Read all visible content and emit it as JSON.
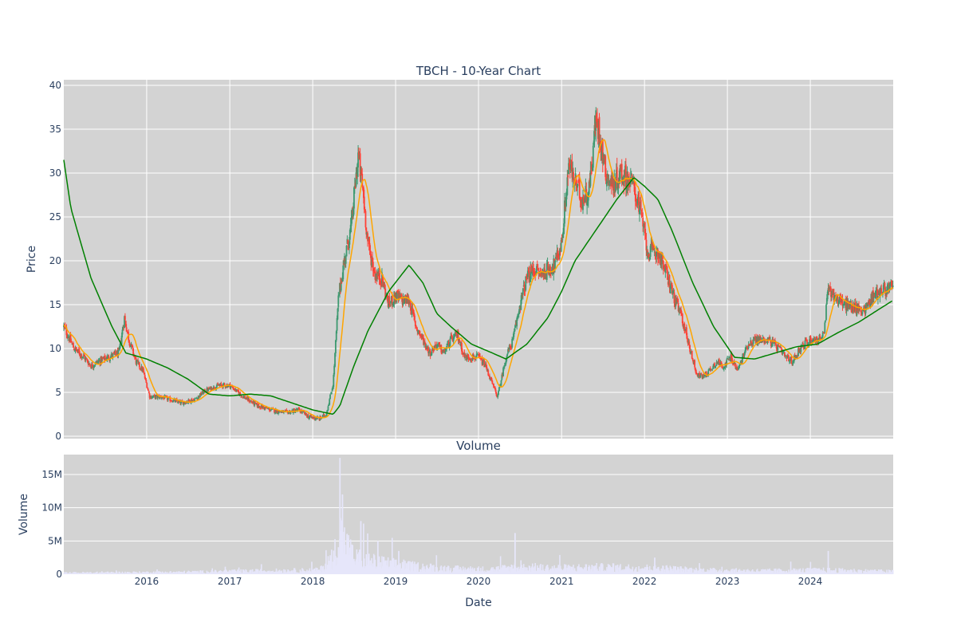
{
  "colors": {
    "plot_bg": "#d3d3d3",
    "grid": "#ffffff",
    "up": "#3d9970",
    "down": "#ff4136",
    "short_ma": "#ffa500",
    "long_ma": "#008000",
    "volume": "#e6e6fa"
  },
  "chart_data": [
    {
      "type": "candlestick",
      "title": "TBCH - 10-Year Chart",
      "ylabel": "Price",
      "ylim": [
        0,
        40
      ],
      "y_ticks": [
        0,
        5,
        10,
        15,
        20,
        25,
        30,
        35,
        40
      ],
      "x_ticks": [
        "2016",
        "2017",
        "2018",
        "2019",
        "2020",
        "2021",
        "2022",
        "2023",
        "2024"
      ],
      "x_range": [
        "2015-01-01",
        "2024-12-31"
      ],
      "grid": true,
      "price_path": [
        [
          "2015-01-01",
          12.5
        ],
        [
          "2015-02-15",
          10.0
        ],
        [
          "2015-04-01",
          9.0
        ],
        [
          "2015-05-01",
          8.0
        ],
        [
          "2015-06-01",
          8.5
        ],
        [
          "2015-07-15",
          9.0
        ],
        [
          "2015-09-01",
          9.5
        ],
        [
          "2015-09-25",
          13.5
        ],
        [
          "2015-10-15",
          11.0
        ],
        [
          "2015-11-15",
          8.5
        ],
        [
          "2015-12-15",
          7.5
        ],
        [
          "2016-01-15",
          4.5
        ],
        [
          "2016-03-01",
          4.5
        ],
        [
          "2016-06-01",
          3.8
        ],
        [
          "2016-08-01",
          4.2
        ],
        [
          "2016-09-15",
          5.2
        ],
        [
          "2016-11-15",
          5.8
        ],
        [
          "2017-01-01",
          5.8
        ],
        [
          "2017-03-01",
          4.5
        ],
        [
          "2017-05-01",
          3.5
        ],
        [
          "2017-07-01",
          3.0
        ],
        [
          "2017-09-01",
          2.7
        ],
        [
          "2017-11-01",
          3.0
        ],
        [
          "2017-12-15",
          2.2
        ],
        [
          "2018-02-01",
          2.0
        ],
        [
          "2018-03-01",
          2.5
        ],
        [
          "2018-04-01",
          6.0
        ],
        [
          "2018-04-25",
          16.0
        ],
        [
          "2018-05-20",
          20.0
        ],
        [
          "2018-06-20",
          24.0
        ],
        [
          "2018-07-20",
          32.0
        ],
        [
          "2018-08-10",
          28.0
        ],
        [
          "2018-09-01",
          22.0
        ],
        [
          "2018-10-01",
          18.5
        ],
        [
          "2018-11-01",
          18.0
        ],
        [
          "2018-12-01",
          15.0
        ],
        [
          "2019-01-01",
          16.0
        ],
        [
          "2019-02-01",
          15.5
        ],
        [
          "2019-03-01",
          15.5
        ],
        [
          "2019-04-01",
          12.5
        ],
        [
          "2019-05-01",
          11.0
        ],
        [
          "2019-06-01",
          9.5
        ],
        [
          "2019-07-01",
          10.5
        ],
        [
          "2019-08-01",
          9.5
        ],
        [
          "2019-09-01",
          11.0
        ],
        [
          "2019-10-01",
          11.5
        ],
        [
          "2019-11-01",
          9.0
        ],
        [
          "2019-12-01",
          9.0
        ],
        [
          "2020-01-01",
          9.0
        ],
        [
          "2020-02-01",
          8.0
        ],
        [
          "2020-03-01",
          6.0
        ],
        [
          "2020-03-25",
          4.5
        ],
        [
          "2020-05-01",
          9.0
        ],
        [
          "2020-06-01",
          11.0
        ],
        [
          "2020-07-01",
          15.0
        ],
        [
          "2020-08-01",
          18.0
        ],
        [
          "2020-09-01",
          19.0
        ],
        [
          "2020-10-01",
          18.5
        ],
        [
          "2020-11-01",
          19.0
        ],
        [
          "2020-12-01",
          19.5
        ],
        [
          "2021-01-01",
          22.0
        ],
        [
          "2021-02-01",
          31.0
        ],
        [
          "2021-03-01",
          29.0
        ],
        [
          "2021-04-01",
          27.0
        ],
        [
          "2021-05-01",
          28.0
        ],
        [
          "2021-06-01",
          36.0
        ],
        [
          "2021-06-20",
          34.0
        ],
        [
          "2021-07-15",
          30.0
        ],
        [
          "2021-08-15",
          28.5
        ],
        [
          "2021-09-15",
          30.0
        ],
        [
          "2021-10-15",
          29.5
        ],
        [
          "2021-11-15",
          28.5
        ],
        [
          "2021-12-15",
          25.5
        ],
        [
          "2022-01-15",
          21.0
        ],
        [
          "2022-03-01",
          21.0
        ],
        [
          "2022-04-15",
          18.0
        ],
        [
          "2022-05-15",
          15.5
        ],
        [
          "2022-06-15",
          13.5
        ],
        [
          "2022-07-20",
          10.0
        ],
        [
          "2022-08-20",
          7.0
        ],
        [
          "2022-09-15",
          6.8
        ],
        [
          "2022-10-15",
          7.5
        ],
        [
          "2022-11-15",
          8.5
        ],
        [
          "2022-12-15",
          8.0
        ],
        [
          "2023-01-15",
          9.0
        ],
        [
          "2023-02-15",
          7.5
        ],
        [
          "2023-04-01",
          10.5
        ],
        [
          "2023-05-01",
          11.0
        ],
        [
          "2023-07-01",
          11.0
        ],
        [
          "2023-08-15",
          10.0
        ],
        [
          "2023-09-15",
          9.0
        ],
        [
          "2023-10-15",
          8.5
        ],
        [
          "2023-11-15",
          10.0
        ],
        [
          "2024-01-01",
          11.0
        ],
        [
          "2024-02-01",
          11.0
        ],
        [
          "2024-03-01",
          11.5
        ],
        [
          "2024-03-20",
          17.0
        ],
        [
          "2024-04-15",
          16.0
        ],
        [
          "2024-06-01",
          15.0
        ],
        [
          "2024-08-01",
          14.5
        ],
        [
          "2024-09-01",
          14.5
        ],
        [
          "2024-10-01",
          16.0
        ],
        [
          "2024-11-01",
          16.5
        ],
        [
          "2024-12-31",
          17.0
        ]
      ],
      "long_ma": [
        [
          "2015-01-01",
          31.5
        ],
        [
          "2015-02-01",
          26.0
        ],
        [
          "2015-05-01",
          18.0
        ],
        [
          "2015-08-01",
          12.5
        ],
        [
          "2015-10-01",
          9.5
        ],
        [
          "2016-01-01",
          8.8
        ],
        [
          "2016-04-01",
          7.8
        ],
        [
          "2016-07-01",
          6.5
        ],
        [
          "2016-10-01",
          4.8
        ],
        [
          "2017-01-01",
          4.6
        ],
        [
          "2017-04-01",
          4.8
        ],
        [
          "2017-07-01",
          4.6
        ],
        [
          "2017-10-01",
          3.8
        ],
        [
          "2018-01-01",
          3.0
        ],
        [
          "2018-04-01",
          2.5
        ],
        [
          "2018-05-01",
          3.5
        ],
        [
          "2018-07-01",
          8.0
        ],
        [
          "2018-09-01",
          12.0
        ],
        [
          "2018-12-01",
          16.5
        ],
        [
          "2019-03-01",
          19.5
        ],
        [
          "2019-05-01",
          17.5
        ],
        [
          "2019-07-01",
          14.0
        ],
        [
          "2019-09-01",
          12.5
        ],
        [
          "2019-12-01",
          10.5
        ],
        [
          "2020-03-01",
          9.5
        ],
        [
          "2020-05-01",
          8.8
        ],
        [
          "2020-08-01",
          10.5
        ],
        [
          "2020-11-01",
          13.5
        ],
        [
          "2021-01-01",
          16.5
        ],
        [
          "2021-03-01",
          20.0
        ],
        [
          "2021-06-01",
          23.5
        ],
        [
          "2021-09-01",
          27.0
        ],
        [
          "2021-11-15",
          29.5
        ],
        [
          "2022-01-01",
          28.5
        ],
        [
          "2022-03-01",
          27.0
        ],
        [
          "2022-05-01",
          23.5
        ],
        [
          "2022-08-01",
          17.5
        ],
        [
          "2022-11-01",
          12.5
        ],
        [
          "2023-02-01",
          9.0
        ],
        [
          "2023-05-01",
          8.8
        ],
        [
          "2023-08-01",
          9.5
        ],
        [
          "2023-11-01",
          10.2
        ],
        [
          "2024-02-01",
          10.5
        ],
        [
          "2024-05-01",
          11.8
        ],
        [
          "2024-08-01",
          13.0
        ],
        [
          "2024-12-31",
          15.5
        ]
      ]
    },
    {
      "type": "bar",
      "title": "Volume",
      "xlabel": "Date",
      "ylabel": "Volume",
      "ylim": [
        0,
        18
      ],
      "y_tick_values": [
        0,
        5,
        10,
        15
      ],
      "y_tick_labels": [
        "0",
        "5M",
        "10M",
        "15M"
      ],
      "volume_path": [
        [
          "2015-01-01",
          0.2
        ],
        [
          "2016-05-01",
          0.3
        ],
        [
          "2018-02-01",
          0.6
        ],
        [
          "2018-04-01",
          2.5
        ],
        [
          "2018-05-01",
          6.0
        ],
        [
          "2018-07-01",
          2.5
        ],
        [
          "2018-10-01",
          1.8
        ],
        [
          "2019-03-01",
          1.2
        ],
        [
          "2019-09-01",
          0.8
        ],
        [
          "2020-03-01",
          0.7
        ],
        [
          "2020-06-01",
          1.0
        ],
        [
          "2021-01-01",
          0.9
        ],
        [
          "2021-06-01",
          1.0
        ],
        [
          "2022-03-01",
          0.9
        ],
        [
          "2022-09-01",
          0.6
        ],
        [
          "2023-06-01",
          0.5
        ],
        [
          "2024-03-01",
          0.6
        ],
        [
          "2024-12-31",
          0.4
        ]
      ],
      "volume_spikes": [
        [
          "2018-05-01",
          17.5
        ],
        [
          "2018-05-12",
          12.0
        ],
        [
          "2018-06-01",
          6.0
        ],
        [
          "2018-08-01",
          8.0
        ],
        [
          "2018-10-15",
          5.0
        ],
        [
          "2019-01-15",
          3.5
        ],
        [
          "2020-06-10",
          6.2
        ],
        [
          "2024-03-20",
          3.5
        ],
        [
          "2022-02-15",
          2.5
        ]
      ]
    }
  ]
}
